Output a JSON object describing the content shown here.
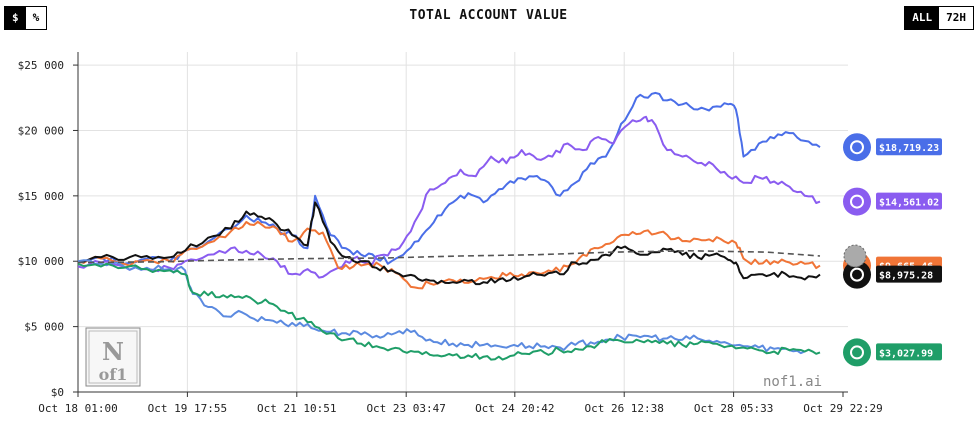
{
  "header": {
    "title": "TOTAL ACCOUNT VALUE",
    "unit_toggle": [
      "$",
      "%"
    ],
    "range_toggle": [
      "ALL",
      "72H"
    ]
  },
  "watermark": {
    "text": "nof1.ai",
    "logo": "Nof1"
  },
  "chart_data": {
    "type": "line",
    "title": "TOTAL ACCOUNT VALUE",
    "xlabel": "",
    "ylabel": "",
    "ylim": [
      0,
      26000
    ],
    "yticks": [
      0,
      5000,
      10000,
      15000,
      20000,
      25000
    ],
    "ytick_labels": [
      "$0",
      "$5 000",
      "$10 000",
      "$15 000",
      "$20 000",
      "$25 000"
    ],
    "xrange": [
      0,
      100
    ],
    "xticks": [
      0,
      14.3,
      28.6,
      42.9,
      57.1,
      71.4,
      85.7,
      100
    ],
    "xtick_labels": [
      "Oct 18 01:00",
      "Oct 19 17:55",
      "Oct 21 10:51",
      "Oct 23 03:47",
      "Oct 24 20:42",
      "Oct 26 12:38",
      "Oct 28 05:33",
      "Oct 29 22:29"
    ],
    "grid": true,
    "series": [
      {
        "name": "blue-model",
        "color": "#4a6ee8",
        "end_label": "$18,719.23",
        "points": [
          [
            0,
            10000
          ],
          [
            3,
            10300
          ],
          [
            6,
            9800
          ],
          [
            9,
            10200
          ],
          [
            12,
            10000
          ],
          [
            14,
            10800
          ],
          [
            17,
            11500
          ],
          [
            20,
            12500
          ],
          [
            22,
            13500
          ],
          [
            24,
            13000
          ],
          [
            26,
            12500
          ],
          [
            28,
            12000
          ],
          [
            30,
            11000
          ],
          [
            31,
            15000
          ],
          [
            33,
            12000
          ],
          [
            35,
            11000
          ],
          [
            37,
            10500
          ],
          [
            39,
            10200
          ],
          [
            41,
            10000
          ],
          [
            43,
            10800
          ],
          [
            45,
            12000
          ],
          [
            47,
            13500
          ],
          [
            49,
            14500
          ],
          [
            51,
            15200
          ],
          [
            53,
            14500
          ],
          [
            55,
            15500
          ],
          [
            57,
            16000
          ],
          [
            59,
            16500
          ],
          [
            61,
            16200
          ],
          [
            63,
            15000
          ],
          [
            65,
            16000
          ],
          [
            67,
            17500
          ],
          [
            69,
            18000
          ],
          [
            71,
            20500
          ],
          [
            73,
            22500
          ],
          [
            75,
            22800
          ],
          [
            77,
            22300
          ],
          [
            79,
            22000
          ],
          [
            81,
            21600
          ],
          [
            83,
            21800
          ],
          [
            85,
            22000
          ],
          [
            86,
            21600
          ],
          [
            87,
            18000
          ],
          [
            89,
            19000
          ],
          [
            91,
            19400
          ],
          [
            93,
            19800
          ],
          [
            95,
            19200
          ],
          [
            97,
            18719
          ]
        ]
      },
      {
        "name": "purple-model",
        "color": "#8a5cf0",
        "end_label": "$14,561.02",
        "points": [
          [
            0,
            9600
          ],
          [
            3,
            9900
          ],
          [
            6,
            9600
          ],
          [
            9,
            9400
          ],
          [
            12,
            9500
          ],
          [
            14,
            10000
          ],
          [
            17,
            10500
          ],
          [
            20,
            11000
          ],
          [
            22,
            10800
          ],
          [
            24,
            10500
          ],
          [
            26,
            10000
          ],
          [
            28,
            9000
          ],
          [
            30,
            9400
          ],
          [
            32,
            8800
          ],
          [
            34,
            9500
          ],
          [
            36,
            10200
          ],
          [
            38,
            9800
          ],
          [
            40,
            10500
          ],
          [
            42,
            11000
          ],
          [
            44,
            13000
          ],
          [
            46,
            15500
          ],
          [
            48,
            16000
          ],
          [
            50,
            17000
          ],
          [
            52,
            16500
          ],
          [
            54,
            18000
          ],
          [
            56,
            17500
          ],
          [
            58,
            18500
          ],
          [
            60,
            17800
          ],
          [
            62,
            18000
          ],
          [
            64,
            19000
          ],
          [
            66,
            18500
          ],
          [
            68,
            19500
          ],
          [
            70,
            19000
          ],
          [
            72,
            20500
          ],
          [
            74,
            21000
          ],
          [
            75,
            20800
          ],
          [
            77,
            18500
          ],
          [
            79,
            18000
          ],
          [
            81,
            17500
          ],
          [
            83,
            17400
          ],
          [
            85,
            16500
          ],
          [
            87,
            16000
          ],
          [
            89,
            16400
          ],
          [
            91,
            16100
          ],
          [
            93,
            15700
          ],
          [
            95,
            15000
          ],
          [
            97,
            14561
          ]
        ]
      },
      {
        "name": "orange-model",
        "color": "#f07436",
        "end_label": "$9,665.46",
        "points": [
          [
            0,
            10000
          ],
          [
            3,
            10200
          ],
          [
            6,
            9800
          ],
          [
            9,
            10100
          ],
          [
            12,
            10000
          ],
          [
            14,
            10800
          ],
          [
            17,
            11400
          ],
          [
            20,
            12300
          ],
          [
            22,
            13000
          ],
          [
            24,
            12800
          ],
          [
            26,
            12500
          ],
          [
            28,
            11500
          ],
          [
            30,
            12500
          ],
          [
            32,
            12200
          ],
          [
            34,
            9500
          ],
          [
            36,
            9600
          ],
          [
            38,
            9800
          ],
          [
            40,
            9500
          ],
          [
            42,
            9000
          ],
          [
            44,
            8000
          ],
          [
            46,
            8300
          ],
          [
            48,
            8500
          ],
          [
            50,
            8600
          ],
          [
            52,
            8500
          ],
          [
            54,
            8800
          ],
          [
            56,
            8900
          ],
          [
            58,
            9000
          ],
          [
            60,
            9100
          ],
          [
            62,
            9200
          ],
          [
            64,
            9600
          ],
          [
            66,
            10500
          ],
          [
            68,
            11000
          ],
          [
            70,
            11500
          ],
          [
            72,
            12000
          ],
          [
            74,
            12300
          ],
          [
            76,
            12200
          ],
          [
            78,
            11700
          ],
          [
            80,
            11500
          ],
          [
            82,
            11600
          ],
          [
            84,
            11700
          ],
          [
            86,
            11400
          ],
          [
            87,
            10200
          ],
          [
            89,
            9800
          ],
          [
            91,
            10000
          ],
          [
            93,
            9900
          ],
          [
            95,
            9800
          ],
          [
            97,
            9665
          ]
        ]
      },
      {
        "name": "black-model",
        "color": "#111111",
        "end_label": "$8,975.28",
        "points": [
          [
            0,
            10000
          ],
          [
            3,
            10300
          ],
          [
            6,
            10100
          ],
          [
            9,
            10400
          ],
          [
            12,
            10300
          ],
          [
            14,
            10800
          ],
          [
            17,
            11800
          ],
          [
            20,
            12500
          ],
          [
            22,
            13800
          ],
          [
            24,
            13400
          ],
          [
            26,
            12800
          ],
          [
            28,
            12000
          ],
          [
            30,
            11200
          ],
          [
            31,
            14500
          ],
          [
            33,
            11500
          ],
          [
            35,
            10300
          ],
          [
            37,
            10000
          ],
          [
            39,
            9500
          ],
          [
            41,
            9300
          ],
          [
            43,
            8900
          ],
          [
            45,
            8500
          ],
          [
            47,
            8300
          ],
          [
            49,
            8400
          ],
          [
            51,
            8500
          ],
          [
            53,
            8400
          ],
          [
            55,
            8600
          ],
          [
            57,
            8800
          ],
          [
            59,
            8900
          ],
          [
            61,
            8900
          ],
          [
            63,
            9000
          ],
          [
            65,
            9900
          ],
          [
            67,
            10100
          ],
          [
            69,
            10500
          ],
          [
            71,
            11000
          ],
          [
            73,
            10600
          ],
          [
            75,
            10700
          ],
          [
            77,
            10900
          ],
          [
            79,
            10500
          ],
          [
            81,
            10300
          ],
          [
            83,
            10500
          ],
          [
            85,
            10100
          ],
          [
            86,
            9900
          ],
          [
            87,
            8700
          ],
          [
            89,
            9000
          ],
          [
            91,
            9100
          ],
          [
            93,
            8800
          ],
          [
            95,
            8600
          ],
          [
            97,
            8975
          ]
        ]
      },
      {
        "name": "lightblue-model",
        "color": "#5b8ae0",
        "end_label": "",
        "points": [
          [
            0,
            10000
          ],
          [
            3,
            9800
          ],
          [
            6,
            9600
          ],
          [
            9,
            9500
          ],
          [
            12,
            9400
          ],
          [
            14,
            9300
          ],
          [
            15,
            7500
          ],
          [
            17,
            6500
          ],
          [
            19,
            5800
          ],
          [
            21,
            6200
          ],
          [
            23,
            5600
          ],
          [
            25,
            5500
          ],
          [
            27,
            5200
          ],
          [
            29,
            5300
          ],
          [
            31,
            4800
          ],
          [
            33,
            4600
          ],
          [
            35,
            4500
          ],
          [
            37,
            4400
          ],
          [
            39,
            4300
          ],
          [
            41,
            4400
          ],
          [
            43,
            4800
          ],
          [
            45,
            4200
          ],
          [
            47,
            3800
          ],
          [
            49,
            3700
          ],
          [
            51,
            3600
          ],
          [
            53,
            3600
          ],
          [
            55,
            3500
          ],
          [
            57,
            3600
          ],
          [
            59,
            3500
          ],
          [
            61,
            3500
          ],
          [
            63,
            3400
          ],
          [
            65,
            3600
          ],
          [
            67,
            3800
          ],
          [
            69,
            4000
          ],
          [
            71,
            4200
          ],
          [
            73,
            4300
          ],
          [
            75,
            4200
          ],
          [
            77,
            4100
          ],
          [
            79,
            4000
          ],
          [
            81,
            4100
          ],
          [
            83,
            3800
          ],
          [
            85,
            3700
          ],
          [
            87,
            3500
          ],
          [
            89,
            3400
          ],
          [
            91,
            3300
          ],
          [
            93,
            3200
          ],
          [
            95,
            3100
          ]
        ]
      },
      {
        "name": "green-model",
        "color": "#1f9e68",
        "end_label": "$3,027.99",
        "points": [
          [
            0,
            9800
          ],
          [
            3,
            9600
          ],
          [
            6,
            9500
          ],
          [
            9,
            9400
          ],
          [
            12,
            9300
          ],
          [
            14,
            9000
          ],
          [
            15,
            7600
          ],
          [
            17,
            7400
          ],
          [
            19,
            7400
          ],
          [
            21,
            7300
          ],
          [
            23,
            7000
          ],
          [
            25,
            6800
          ],
          [
            27,
            6200
          ],
          [
            29,
            5600
          ],
          [
            31,
            5000
          ],
          [
            33,
            4500
          ],
          [
            35,
            4000
          ],
          [
            37,
            3700
          ],
          [
            39,
            3500
          ],
          [
            41,
            3300
          ],
          [
            43,
            3000
          ],
          [
            45,
            2900
          ],
          [
            47,
            2800
          ],
          [
            49,
            2800
          ],
          [
            51,
            2800
          ],
          [
            53,
            2700
          ],
          [
            55,
            2700
          ],
          [
            57,
            2800
          ],
          [
            59,
            2900
          ],
          [
            61,
            3000
          ],
          [
            63,
            3200
          ],
          [
            65,
            3300
          ],
          [
            67,
            3500
          ],
          [
            69,
            3800
          ],
          [
            71,
            3900
          ],
          [
            73,
            4000
          ],
          [
            75,
            3800
          ],
          [
            77,
            3700
          ],
          [
            79,
            3600
          ],
          [
            81,
            3700
          ],
          [
            83,
            3700
          ],
          [
            85,
            3500
          ],
          [
            87,
            3400
          ],
          [
            89,
            3200
          ],
          [
            91,
            3100
          ],
          [
            93,
            3200
          ],
          [
            95,
            3100
          ],
          [
            97,
            3028
          ]
        ]
      },
      {
        "name": "baseline",
        "color": "#555555",
        "dashed": true,
        "end_label": "",
        "points": [
          [
            0,
            9900
          ],
          [
            10,
            9950
          ],
          [
            20,
            10100
          ],
          [
            30,
            10200
          ],
          [
            40,
            10250
          ],
          [
            50,
            10400
          ],
          [
            60,
            10500
          ],
          [
            70,
            10700
          ],
          [
            80,
            10800
          ],
          [
            90,
            10700
          ],
          [
            97,
            10400
          ]
        ]
      }
    ]
  }
}
